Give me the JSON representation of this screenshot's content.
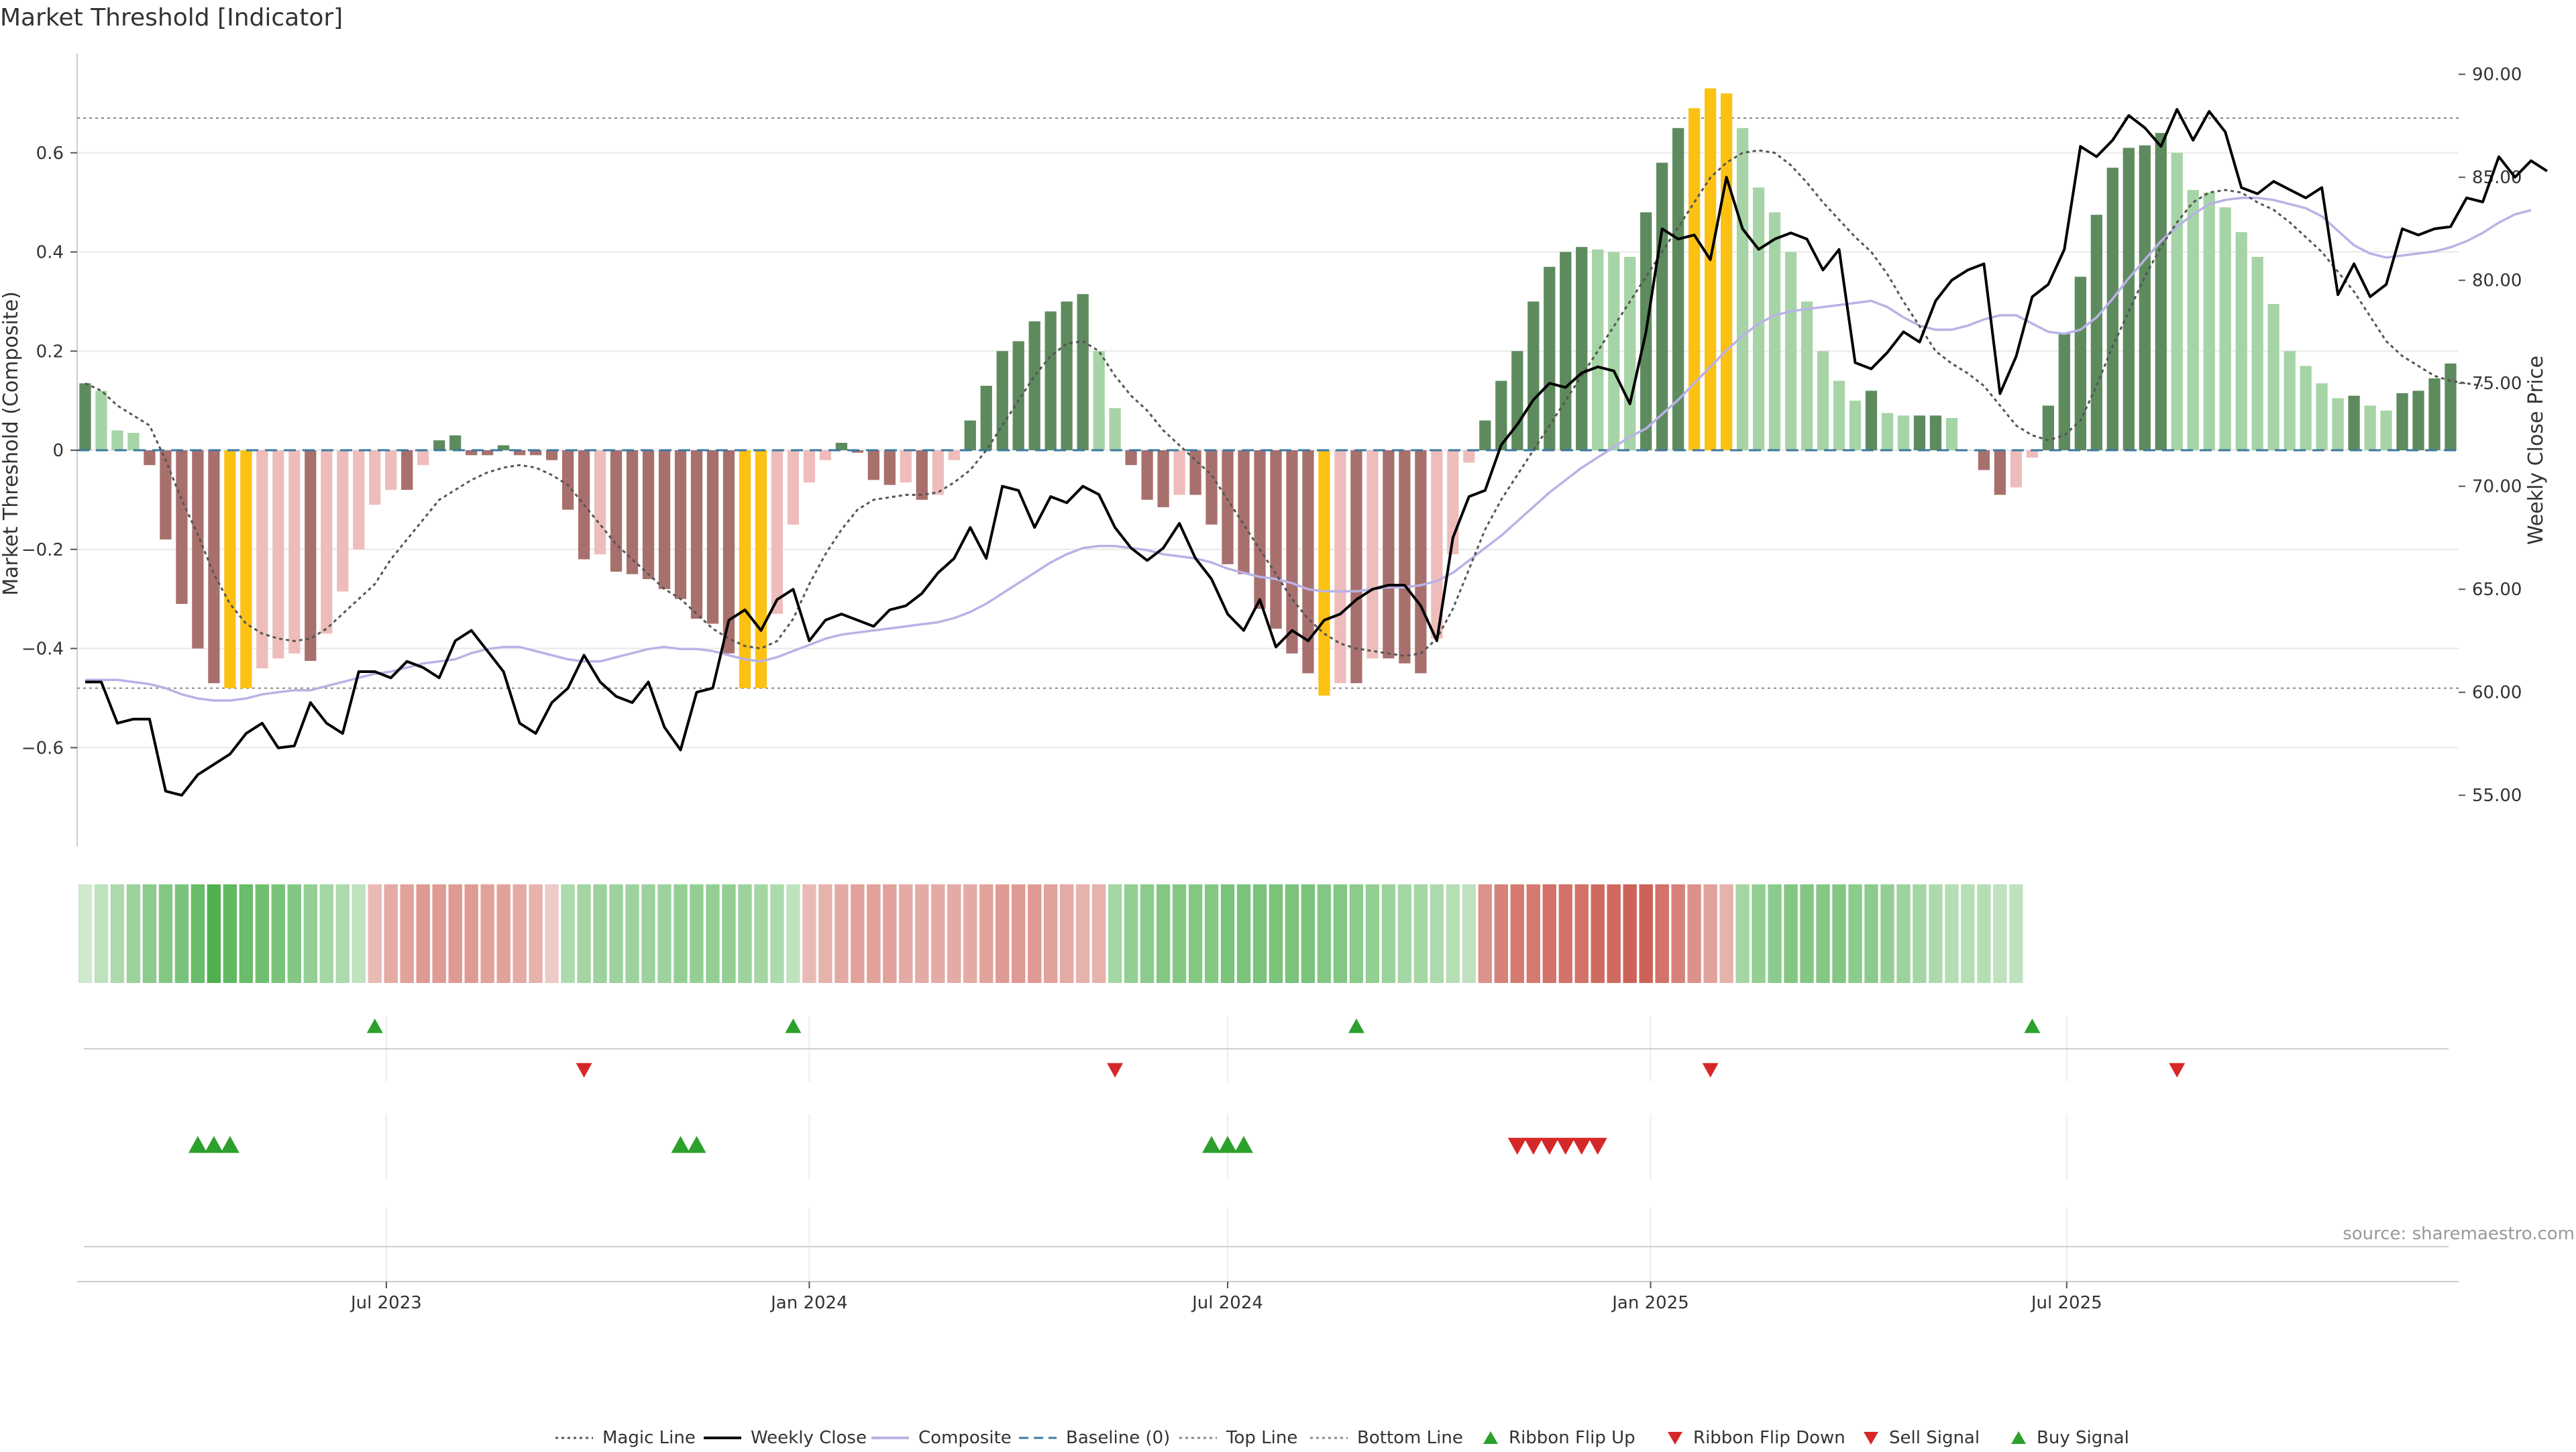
{
  "title": "Market Threshold [Indicator]",
  "source": "source: sharemaestro.com",
  "chart_data": {
    "type": "bar+line",
    "x_start": "2023-02-20",
    "x_step_days": 7,
    "y_left": {
      "label": "Market Threshold (Composite)",
      "range": [
        -0.8,
        0.8
      ],
      "ticks": [
        -0.6,
        -0.4,
        -0.2,
        0,
        0.2,
        0.4,
        0.6
      ],
      "tick_labels": [
        "−0.6",
        "−0.4",
        "−0.2",
        "0",
        "0.2",
        "0.4",
        "0.6"
      ]
    },
    "y_right": {
      "label": "Weekly Close Price",
      "range": [
        52.5,
        91.0
      ],
      "ticks": [
        55,
        60,
        65,
        70,
        75,
        80,
        85,
        90
      ],
      "tick_labels": [
        "55.00",
        "60.00",
        "65.00",
        "70.00",
        "75.00",
        "80.00",
        "85.00",
        "90.00"
      ]
    },
    "x_axis": {
      "ticks": [
        "2023-07-01",
        "2024-01-01",
        "2024-07-01",
        "2025-01-01",
        "2025-07-01"
      ],
      "tick_labels": [
        "Jul 2023",
        "Jan 2024",
        "Jul 2024",
        "Jan 2025",
        "Jul 2025"
      ]
    },
    "top_line": 0.67,
    "bottom_line": -0.48,
    "composite_bars": [
      0.135,
      0.12,
      0.04,
      0.035,
      -0.03,
      -0.18,
      -0.31,
      -0.4,
      -0.47,
      -0.48,
      -0.48,
      -0.44,
      -0.42,
      -0.41,
      -0.425,
      -0.37,
      -0.285,
      -0.2,
      -0.11,
      -0.08,
      -0.08,
      -0.03,
      0.02,
      0.03,
      -0.01,
      -0.01,
      0.01,
      -0.01,
      -0.01,
      -0.02,
      -0.12,
      -0.22,
      -0.21,
      -0.245,
      -0.25,
      -0.26,
      -0.28,
      -0.3,
      -0.34,
      -0.35,
      -0.41,
      -0.48,
      -0.48,
      -0.33,
      -0.15,
      -0.065,
      -0.02,
      0.015,
      -0.005,
      -0.06,
      -0.07,
      -0.065,
      -0.1,
      -0.09,
      -0.02,
      0.06,
      0.13,
      0.2,
      0.22,
      0.26,
      0.28,
      0.3,
      0.315,
      0.2,
      0.085,
      -0.03,
      -0.1,
      -0.115,
      -0.09,
      -0.09,
      -0.15,
      -0.23,
      -0.25,
      -0.32,
      -0.36,
      -0.41,
      -0.45,
      -0.495,
      -0.47,
      -0.47,
      -0.42,
      -0.42,
      -0.43,
      -0.45,
      -0.38,
      -0.21,
      -0.025,
      0.06,
      0.14,
      0.2,
      0.3,
      0.37,
      0.4,
      0.41,
      0.405,
      0.4,
      0.39,
      0.48,
      0.58,
      0.65,
      0.69,
      0.73,
      0.72,
      0.65,
      0.53,
      0.48,
      0.4,
      0.3,
      0.2,
      0.14,
      0.1,
      0.12,
      0.075,
      0.07,
      0.07,
      0.07,
      0.065,
      0,
      -0.04,
      -0.09,
      -0.075,
      -0.015,
      0.09,
      0.235,
      0.35,
      0.475,
      0.57,
      0.61,
      0.615,
      0.64,
      0.6,
      0.525,
      0.52,
      0.49,
      0.44,
      0.39,
      0.295,
      0.2,
      0.17,
      0.135,
      0.105,
      0.11,
      0.09,
      0.08,
      0.115,
      0.12,
      0.145,
      0.175
    ],
    "weekly_close": [
      60.5,
      60.5,
      58.5,
      58.7,
      58.7,
      55.2,
      55.0,
      56.0,
      56.5,
      57.0,
      58.0,
      58.5,
      57.3,
      57.4,
      59.5,
      58.5,
      58.0,
      61.0,
      61.0,
      60.7,
      61.5,
      61.2,
      60.7,
      62.5,
      63.0,
      62.0,
      61.0,
      58.5,
      58.0,
      59.5,
      60.2,
      61.8,
      60.5,
      59.8,
      59.5,
      60.5,
      58.3,
      57.2,
      60.0,
      60.2,
      63.5,
      64.0,
      63.0,
      64.5,
      65.0,
      62.5,
      63.5,
      63.8,
      63.5,
      63.2,
      64.0,
      64.2,
      64.8,
      65.8,
      66.5,
      68.0,
      66.5,
      70.0,
      69.8,
      68.0,
      69.5,
      69.2,
      70.0,
      69.6,
      68.0,
      67.0,
      66.4,
      67.0,
      68.2,
      66.5,
      65.5,
      63.8,
      63.0,
      64.5,
      62.2,
      63.0,
      62.5,
      63.5,
      63.8,
      64.5,
      65.0,
      65.2,
      65.2,
      64.2,
      62.5,
      67.5,
      69.5,
      69.8,
      72.0,
      73.0,
      74.2,
      75.0,
      74.8,
      75.5,
      75.8,
      75.6,
      74.0,
      77.5,
      82.5,
      82.0,
      82.2,
      81.0,
      85.0,
      82.5,
      81.5,
      82.0,
      82.3,
      82.0,
      80.5,
      81.5,
      76.0,
      75.7,
      76.5,
      77.5,
      77.0,
      79.0,
      80.0,
      80.5,
      80.8,
      74.5,
      76.3,
      79.2,
      79.8,
      81.5,
      86.5,
      86.0,
      86.8,
      88.0,
      87.4,
      86.5,
      88.3,
      86.8,
      88.2,
      87.2,
      84.5,
      84.2,
      84.8,
      84.4,
      84.0,
      84.5,
      79.3,
      80.8,
      79.2,
      79.8,
      82.5,
      82.2,
      82.5,
      82.6,
      84.0,
      83.8,
      86.0,
      85.0,
      85.8,
      85.3
    ],
    "magic_line": [
      0.135,
      0.12,
      0.09,
      0.07,
      0.05,
      -0.02,
      -0.1,
      -0.17,
      -0.25,
      -0.31,
      -0.35,
      -0.37,
      -0.38,
      -0.385,
      -0.38,
      -0.36,
      -0.33,
      -0.3,
      -0.27,
      -0.22,
      -0.18,
      -0.14,
      -0.1,
      -0.08,
      -0.06,
      -0.045,
      -0.035,
      -0.03,
      -0.035,
      -0.05,
      -0.07,
      -0.11,
      -0.15,
      -0.19,
      -0.22,
      -0.25,
      -0.28,
      -0.3,
      -0.33,
      -0.36,
      -0.38,
      -0.395,
      -0.4,
      -0.385,
      -0.34,
      -0.27,
      -0.21,
      -0.16,
      -0.12,
      -0.1,
      -0.095,
      -0.09,
      -0.09,
      -0.085,
      -0.065,
      -0.04,
      0.0,
      0.05,
      0.1,
      0.15,
      0.19,
      0.215,
      0.22,
      0.2,
      0.15,
      0.11,
      0.08,
      0.04,
      0.01,
      -0.02,
      -0.05,
      -0.1,
      -0.15,
      -0.2,
      -0.25,
      -0.3,
      -0.34,
      -0.37,
      -0.39,
      -0.4,
      -0.405,
      -0.41,
      -0.415,
      -0.41,
      -0.38,
      -0.32,
      -0.24,
      -0.16,
      -0.1,
      -0.05,
      0.0,
      0.05,
      0.1,
      0.15,
      0.2,
      0.25,
      0.3,
      0.35,
      0.4,
      0.45,
      0.5,
      0.55,
      0.58,
      0.6,
      0.605,
      0.6,
      0.575,
      0.54,
      0.5,
      0.465,
      0.43,
      0.4,
      0.355,
      0.3,
      0.25,
      0.2,
      0.175,
      0.155,
      0.13,
      0.09,
      0.05,
      0.03,
      0.02,
      0.03,
      0.06,
      0.13,
      0.21,
      0.28,
      0.35,
      0.41,
      0.46,
      0.5,
      0.52,
      0.525,
      0.52,
      0.5,
      0.485,
      0.46,
      0.43,
      0.4,
      0.36,
      0.32,
      0.27,
      0.22,
      0.19,
      0.17,
      0.15,
      0.14,
      0.135,
      0.13
    ],
    "composite_line_right": [
      60.6,
      60.6,
      60.6,
      60.5,
      60.4,
      60.2,
      59.9,
      59.7,
      59.6,
      59.6,
      59.7,
      59.9,
      60.0,
      60.1,
      60.1,
      60.3,
      60.5,
      60.7,
      60.9,
      61.0,
      61.2,
      61.4,
      61.5,
      61.6,
      61.9,
      62.1,
      62.2,
      62.2,
      62.0,
      61.8,
      61.6,
      61.5,
      61.5,
      61.7,
      61.9,
      62.1,
      62.2,
      62.1,
      62.1,
      62.0,
      61.8,
      61.6,
      61.5,
      61.7,
      62.0,
      62.3,
      62.6,
      62.8,
      62.9,
      63.0,
      63.1,
      63.2,
      63.3,
      63.4,
      63.6,
      63.9,
      64.3,
      64.8,
      65.3,
      65.8,
      66.3,
      66.7,
      67.0,
      67.1,
      67.1,
      67.0,
      66.9,
      66.7,
      66.6,
      66.5,
      66.3,
      66.0,
      65.8,
      65.6,
      65.5,
      65.3,
      65.0,
      64.9,
      64.9,
      64.9,
      65.0,
      65.1,
      65.1,
      65.2,
      65.4,
      65.8,
      66.4,
      67.0,
      67.6,
      68.3,
      69.0,
      69.7,
      70.3,
      70.9,
      71.4,
      71.9,
      72.4,
      72.8,
      73.5,
      74.2,
      75.0,
      75.8,
      76.6,
      77.3,
      77.9,
      78.3,
      78.5,
      78.6,
      78.7,
      78.8,
      78.9,
      79.0,
      78.7,
      78.2,
      77.8,
      77.6,
      77.6,
      77.8,
      78.1,
      78.3,
      78.3,
      77.9,
      77.5,
      77.4,
      77.6,
      78.2,
      79.1,
      80.1,
      81.0,
      81.9,
      82.6,
      83.2,
      83.7,
      83.9,
      84.0,
      84.0,
      83.9,
      83.7,
      83.5,
      83.1,
      82.4,
      81.7,
      81.3,
      81.1,
      81.2,
      81.3,
      81.4,
      81.6,
      81.9,
      82.3,
      82.8,
      83.2,
      83.4
    ],
    "baseline": 0,
    "ribbon": [
      0.1,
      0.2,
      0.3,
      0.4,
      0.5,
      0.55,
      0.6,
      0.7,
      0.85,
      0.75,
      0.7,
      0.65,
      0.6,
      0.55,
      0.45,
      0.35,
      0.3,
      0.2,
      -0.25,
      -0.35,
      -0.4,
      -0.45,
      -0.45,
      -0.45,
      -0.45,
      -0.4,
      -0.4,
      -0.35,
      -0.3,
      -0.15,
      0.3,
      0.35,
      0.4,
      0.4,
      0.4,
      0.4,
      0.4,
      0.45,
      0.45,
      0.45,
      0.45,
      0.4,
      0.35,
      0.3,
      0.2,
      -0.25,
      -0.3,
      -0.35,
      -0.4,
      -0.4,
      -0.4,
      -0.35,
      -0.35,
      -0.35,
      -0.35,
      -0.35,
      -0.4,
      -0.45,
      -0.45,
      -0.45,
      -0.4,
      -0.35,
      -0.3,
      -0.3,
      0.35,
      0.45,
      0.5,
      0.55,
      0.55,
      0.55,
      0.55,
      0.6,
      0.6,
      0.6,
      0.6,
      0.6,
      0.6,
      0.55,
      0.55,
      0.5,
      0.45,
      0.4,
      0.35,
      0.35,
      0.3,
      0.25,
      0.2,
      -0.5,
      -0.6,
      -0.65,
      -0.65,
      -0.7,
      -0.7,
      -0.7,
      -0.75,
      -0.75,
      -0.8,
      -0.8,
      -0.7,
      -0.6,
      -0.5,
      -0.4,
      -0.3,
      0.35,
      0.45,
      0.5,
      0.55,
      0.55,
      0.55,
      0.55,
      0.5,
      0.5,
      0.45,
      0.4,
      0.35,
      0.3,
      0.25,
      0.25,
      0.25,
      0.2,
      0.2
    ],
    "ribbon_flip_up": [
      "2023-06-26",
      "2023-12-25",
      "2024-08-26",
      "2025-06-16"
    ],
    "ribbon_flip_down": [
      "2023-09-25",
      "2024-05-13",
      "2025-01-27",
      "2025-08-18"
    ],
    "buy_signals": [
      "2023-04-10",
      "2023-04-17",
      "2023-04-24",
      "2023-11-06",
      "2023-11-13",
      "2024-06-24",
      "2024-07-01",
      "2024-07-08"
    ],
    "sell_signals": [
      "2024-11-04",
      "2024-11-11",
      "2024-11-18",
      "2024-11-25",
      "2024-12-02",
      "2024-12-09"
    ],
    "legend": [
      {
        "label": "Magic Line",
        "style": "dotted",
        "color": "#555555"
      },
      {
        "label": "Weekly Close",
        "style": "solid",
        "color": "#000000"
      },
      {
        "label": "Composite",
        "style": "solid",
        "color": "#b9b2e6"
      },
      {
        "label": "Baseline (0)",
        "style": "dashed",
        "color": "#3b78a0"
      },
      {
        "label": "Top Line",
        "style": "dotted",
        "color": "#888888"
      },
      {
        "label": "Bottom Line",
        "style": "dotted",
        "color": "#888888"
      },
      {
        "label": "Ribbon Flip Up",
        "style": "triangle-up",
        "color": "#2ca02c"
      },
      {
        "label": "Ribbon Flip Down",
        "style": "triangle-down",
        "color": "#d62728"
      },
      {
        "label": "Sell Signal",
        "style": "triangle-down",
        "color": "#d62728"
      },
      {
        "label": "Buy Signal",
        "style": "triangle-up",
        "color": "#2ca02c"
      }
    ],
    "colors": {
      "strong_green": "#5e8b5e",
      "light_green": "#a6d4a6",
      "strong_red": "#a8706d",
      "light_red": "#efbcbc",
      "extreme": "#fcc112",
      "weekly_close": "#000000",
      "magic_line": "#555555",
      "composite": "#b9b2e6",
      "baseline": "#3b78a0",
      "threshold_lines": "#888888",
      "ribbon_green": "#2ca02c",
      "ribbon_red": "#c0392b",
      "up_marker": "#2ca02c",
      "down_marker": "#d62728",
      "grid": "#e8e8e8"
    }
  }
}
